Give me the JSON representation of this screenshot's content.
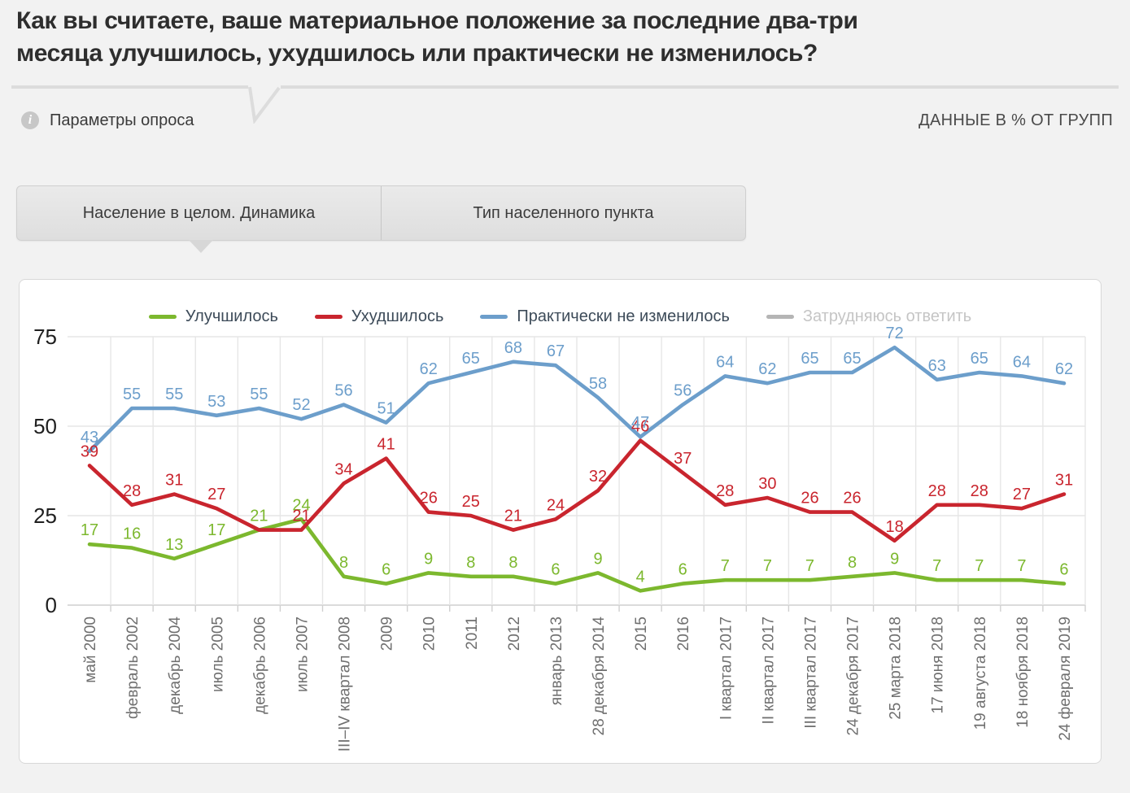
{
  "page": {
    "title_lines": [
      "Как вы считаете, ваше материальное положение за последние два-три",
      "месяца улучшилось, ухудшилось или практически не изменилось?"
    ],
    "survey_params_label": "Параметры опроса",
    "info_icon_glyph": "i",
    "data_note": "ДАННЫЕ В % ОТ ГРУПП"
  },
  "tabs": [
    {
      "label": "Население в целом. Динамика",
      "active": true
    },
    {
      "label": "Тип населенного пункта",
      "active": false
    }
  ],
  "chart_data": {
    "type": "line",
    "title": "",
    "xlabel": "",
    "ylabel": "",
    "ylim": [
      0,
      75
    ],
    "yticks": [
      0,
      25,
      50,
      75
    ],
    "grid": true,
    "legend_position": "top",
    "categories": [
      "май 2000",
      "февраль 2002",
      "декабрь 2004",
      "июль 2005",
      "декабрь 2006",
      "июль 2007",
      "III–IV квартал 2008",
      "2009",
      "2010",
      "2011",
      "2012",
      "январь 2013",
      "28 декабря 2014",
      "2015",
      "2016",
      "I квартал 2017",
      "II квартал 2017",
      "III квартал 2017",
      "24 декабря 2017",
      "25 марта 2018",
      "17 июня 2018",
      "19 августа 2018",
      "18 ноября 2018",
      "24 февраля 2019"
    ],
    "series": [
      {
        "name": "Улучшилось",
        "color": "#7CB82E",
        "values": [
          17,
          16,
          13,
          17,
          21,
          24,
          8,
          6,
          9,
          8,
          8,
          6,
          9,
          4,
          6,
          7,
          7,
          7,
          8,
          9,
          7,
          7,
          7,
          6
        ]
      },
      {
        "name": "Ухудшилось",
        "color": "#C9252E",
        "values": [
          39,
          28,
          31,
          27,
          21,
          21,
          34,
          41,
          26,
          25,
          21,
          24,
          32,
          46,
          37,
          28,
          30,
          26,
          26,
          18,
          28,
          28,
          27,
          31
        ],
        "labels": [
          39,
          28,
          31,
          27,
          null,
          21,
          34,
          41,
          26,
          25,
          21,
          24,
          32,
          46,
          37,
          28,
          30,
          26,
          26,
          18,
          28,
          28,
          27,
          31
        ]
      },
      {
        "name": "Практически не изменилось",
        "color": "#6C9ECB",
        "values": [
          43,
          55,
          55,
          53,
          55,
          52,
          56,
          51,
          62,
          65,
          68,
          67,
          58,
          47,
          56,
          64,
          62,
          65,
          65,
          72,
          63,
          65,
          64,
          62
        ]
      },
      {
        "name": "Затрудняюсь ответить",
        "color": "#B5B5B5",
        "values": [],
        "disabled": true
      }
    ]
  },
  "colors": {
    "grid": "#e6e6e6",
    "axis": "#cfcfcf",
    "y_label": "#1f1f1f",
    "x_label": "#6f6f6f"
  }
}
